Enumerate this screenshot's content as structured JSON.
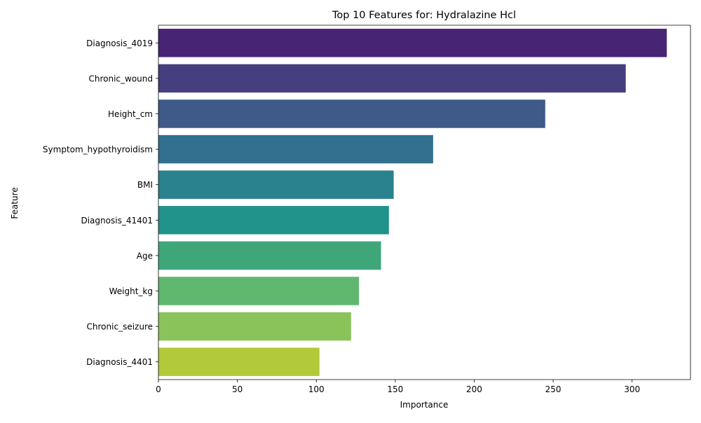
{
  "chart_data": {
    "type": "bar",
    "orientation": "horizontal",
    "title": "Top 10 Features for: Hydralazine Hcl",
    "xlabel": "Importance",
    "ylabel": "Feature",
    "categories": [
      "Diagnosis_4019",
      "Chronic_wound",
      "Height_cm",
      "Symptom_hypothyroidism",
      "BMI",
      "Diagnosis_41401",
      "Age",
      "Weight_kg",
      "Chronic_seizure",
      "Diagnosis_4401"
    ],
    "values": [
      322,
      296,
      245,
      174,
      149,
      146,
      141,
      127,
      122,
      102
    ],
    "colors": [
      "#482475",
      "#463f7f",
      "#3f5989",
      "#33708f",
      "#2a828e",
      "#22938b",
      "#3ea678",
      "#5fb86e",
      "#89c35a",
      "#b2c93a"
    ],
    "xlim": [
      0,
      337
    ],
    "xticks": [
      0,
      50,
      100,
      150,
      200,
      250,
      300
    ],
    "grid": false,
    "legend": "none"
  }
}
